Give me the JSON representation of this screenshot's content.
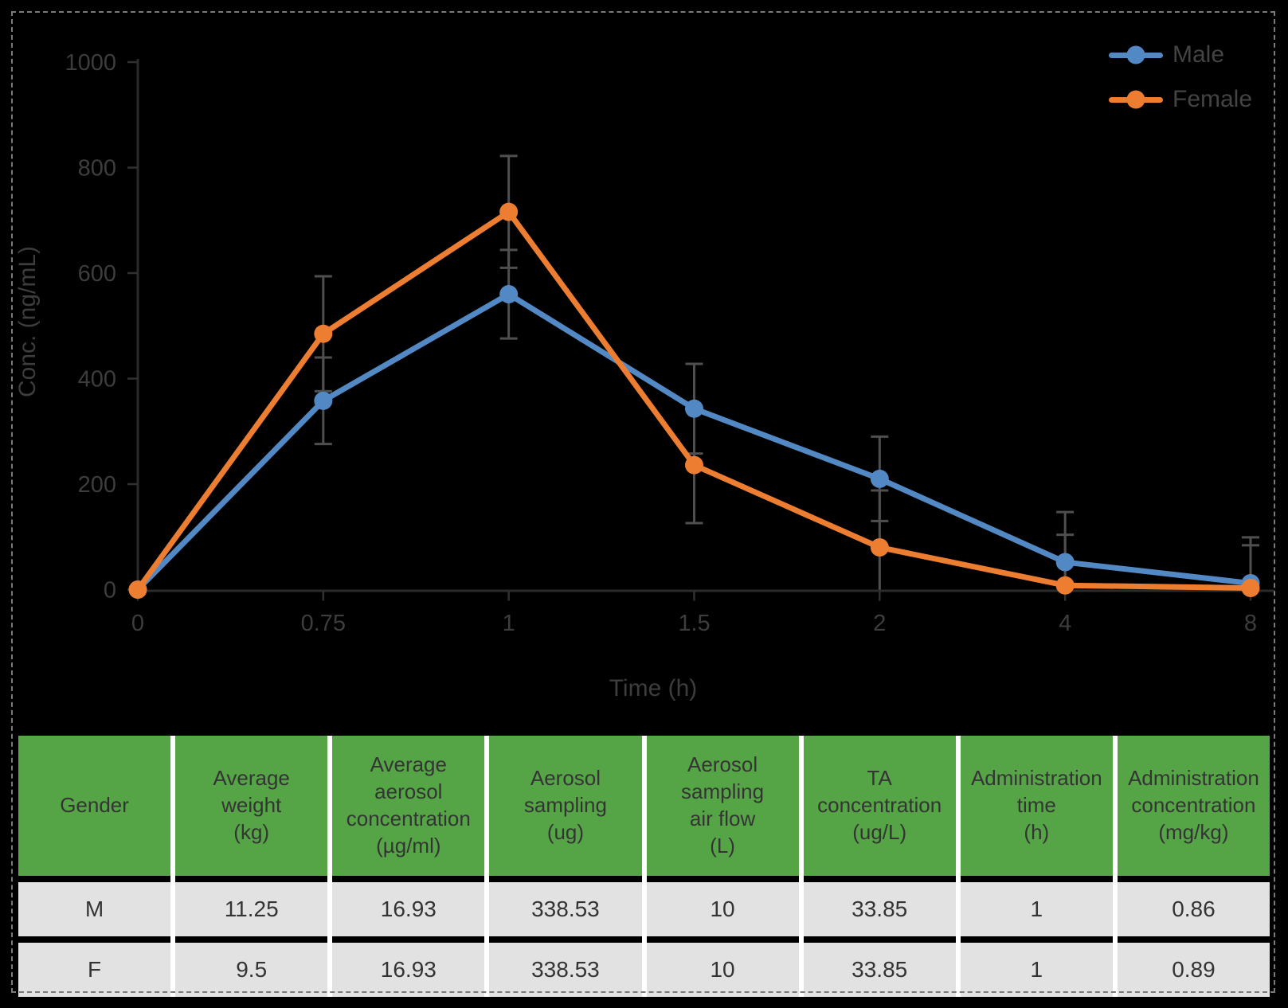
{
  "page": {
    "background": "#000000",
    "border_color": "#7a7a7a"
  },
  "chart_data": {
    "type": "line",
    "title": "",
    "xlabel": "Time (h)",
    "ylabel": "Conc. (ng/mL)",
    "categories": [
      "0",
      "0.75",
      "1",
      "1.5",
      "2",
      "4",
      "8"
    ],
    "ylim": [
      0,
      1000
    ],
    "ytick_step": 200,
    "grid": false,
    "legend_position": "top-right",
    "error_bars": true,
    "colors": {
      "error_bar": "#4F4F4F",
      "axis_line": "#2B2B2B",
      "tick_mark": "#303030",
      "tick_label": "#3D3D3D",
      "axis_title": "#3D3D3D",
      "legend_text": "#434343"
    },
    "series": [
      {
        "name": "Male",
        "color": "#5289C5",
        "values": [
          0,
          358,
          560,
          343,
          210,
          52,
          12
        ],
        "errors": [
          0,
          82,
          84,
          85,
          80,
          95,
          87
        ]
      },
      {
        "name": "Female",
        "color": "#ED7D31",
        "values": [
          0,
          485,
          716,
          236,
          80,
          8,
          3
        ],
        "errors": [
          0,
          109,
          106,
          110,
          108,
          96,
          81
        ]
      }
    ]
  },
  "table": {
    "header_bg": "#55A546",
    "row_bg": "#E2E2E2",
    "separator_color": "#FFFFFF",
    "text_color": "#343434",
    "headers": [
      "Gender",
      "Average\nweight\n(kg)",
      "Average\naerosol\nconcentration\n(µg/ml)",
      "Aerosol\nsampling\n(ug)",
      "Aerosol\nsampling\nair flow\n(L)",
      "TA\nconcentration\n(ug/L)",
      "Administration\ntime\n(h)",
      "Administration\nconcentration\n(mg/kg)"
    ],
    "rows": [
      [
        "M",
        "11.25",
        "16.93",
        "338.53",
        "10",
        "33.85",
        "1",
        "0.86"
      ],
      [
        "F",
        "9.5",
        "16.93",
        "338.53",
        "10",
        "33.85",
        "1",
        "0.89"
      ]
    ]
  }
}
